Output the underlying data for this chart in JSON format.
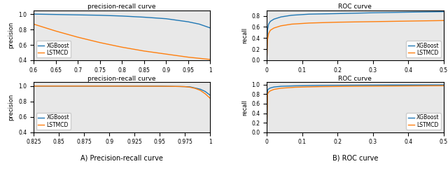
{
  "top_left": {
    "title": "precision-recall curve",
    "ylabel": "precision",
    "xlim": [
      0.6,
      1.0
    ],
    "ylim": [
      0.4,
      1.05
    ],
    "yticks": [
      0.4,
      0.6,
      0.8,
      1.0
    ],
    "xticks": [
      0.6,
      0.65,
      0.7,
      0.75,
      0.8,
      0.85,
      0.9,
      0.95,
      1.0
    ],
    "xgboost_x": [
      0.6,
      0.65,
      0.7,
      0.75,
      0.8,
      0.85,
      0.9,
      0.95,
      0.975,
      1.0
    ],
    "xgboost_y": [
      1.0,
      0.995,
      0.99,
      0.985,
      0.975,
      0.96,
      0.94,
      0.9,
      0.87,
      0.82
    ],
    "lstmcd_x": [
      0.6,
      0.65,
      0.7,
      0.75,
      0.8,
      0.85,
      0.9,
      0.95,
      0.975,
      1.0
    ],
    "lstmcd_y": [
      0.87,
      0.78,
      0.7,
      0.63,
      0.57,
      0.52,
      0.48,
      0.44,
      0.425,
      0.41
    ]
  },
  "top_right": {
    "title": "ROC curve",
    "ylabel": "recall",
    "xlim": [
      0.0,
      0.5
    ],
    "ylim": [
      0.0,
      0.9
    ],
    "yticks": [
      0.0,
      0.2,
      0.4,
      0.6,
      0.8
    ],
    "xticks": [
      0.0,
      0.1,
      0.2,
      0.3,
      0.4,
      0.5
    ],
    "xgboost_x": [
      0.0,
      0.002,
      0.005,
      0.01,
      0.02,
      0.04,
      0.07,
      0.12,
      0.2,
      0.3,
      0.4,
      0.5
    ],
    "xgboost_y": [
      0.0,
      0.55,
      0.65,
      0.7,
      0.74,
      0.78,
      0.81,
      0.83,
      0.84,
      0.855,
      0.865,
      0.875
    ],
    "lstmcd_x": [
      0.0,
      0.002,
      0.005,
      0.01,
      0.02,
      0.04,
      0.07,
      0.12,
      0.2,
      0.3,
      0.4,
      0.5
    ],
    "lstmcd_y": [
      0.0,
      0.37,
      0.48,
      0.54,
      0.58,
      0.62,
      0.65,
      0.67,
      0.685,
      0.695,
      0.705,
      0.715
    ]
  },
  "bottom_left": {
    "title": "precision-recall curve",
    "ylabel": "precision",
    "xlim": [
      0.825,
      1.0
    ],
    "ylim": [
      0.4,
      1.05
    ],
    "yticks": [
      0.4,
      0.6,
      0.8,
      1.0
    ],
    "xticks": [
      0.825,
      0.85,
      0.875,
      0.9,
      0.925,
      0.95,
      0.975,
      1.0
    ],
    "xgboost_x": [
      0.825,
      0.85,
      0.875,
      0.9,
      0.925,
      0.95,
      0.96,
      0.97,
      0.975,
      0.98,
      0.985,
      0.99,
      0.995,
      1.0
    ],
    "xgboost_y": [
      1.0,
      1.0,
      1.0,
      1.0,
      1.0,
      1.0,
      0.997,
      0.995,
      0.993,
      0.99,
      0.975,
      0.96,
      0.93,
      0.88
    ],
    "lstmcd_x": [
      0.825,
      0.85,
      0.875,
      0.9,
      0.925,
      0.95,
      0.96,
      0.97,
      0.975,
      0.98,
      0.985,
      0.99,
      0.995,
      1.0
    ],
    "lstmcd_y": [
      1.0,
      1.0,
      1.0,
      1.0,
      0.999,
      0.998,
      0.997,
      0.995,
      0.993,
      0.985,
      0.97,
      0.945,
      0.9,
      0.84
    ]
  },
  "bottom_right": {
    "title": "ROC curve",
    "ylabel": "recall",
    "xlim": [
      0.0,
      0.5
    ],
    "ylim": [
      0.0,
      1.05
    ],
    "yticks": [
      0.0,
      0.2,
      0.4,
      0.6,
      0.8,
      1.0
    ],
    "xticks": [
      0.0,
      0.1,
      0.2,
      0.3,
      0.4,
      0.5
    ],
    "xgboost_x": [
      0.0,
      0.002,
      0.005,
      0.01,
      0.02,
      0.04,
      0.08,
      0.15,
      0.25,
      0.35,
      0.45,
      0.5
    ],
    "xgboost_y": [
      0.0,
      0.88,
      0.91,
      0.93,
      0.95,
      0.965,
      0.975,
      0.983,
      0.988,
      0.991,
      0.993,
      0.994
    ],
    "lstmcd_x": [
      0.0,
      0.002,
      0.005,
      0.01,
      0.02,
      0.04,
      0.08,
      0.15,
      0.25,
      0.35,
      0.45,
      0.5
    ],
    "lstmcd_y": [
      0.0,
      0.8,
      0.84,
      0.87,
      0.9,
      0.925,
      0.945,
      0.958,
      0.966,
      0.971,
      0.975,
      0.977
    ]
  },
  "label_a": "A) Precision-recall curve",
  "label_b": "B) ROC curve",
  "color_xgboost": "#1f77b4",
  "color_lstmcd": "#ff7f0e",
  "legend_xgboost": "XGBoost",
  "legend_lstmcd": "LSTMCD",
  "bg_color": "#e8e8e8"
}
